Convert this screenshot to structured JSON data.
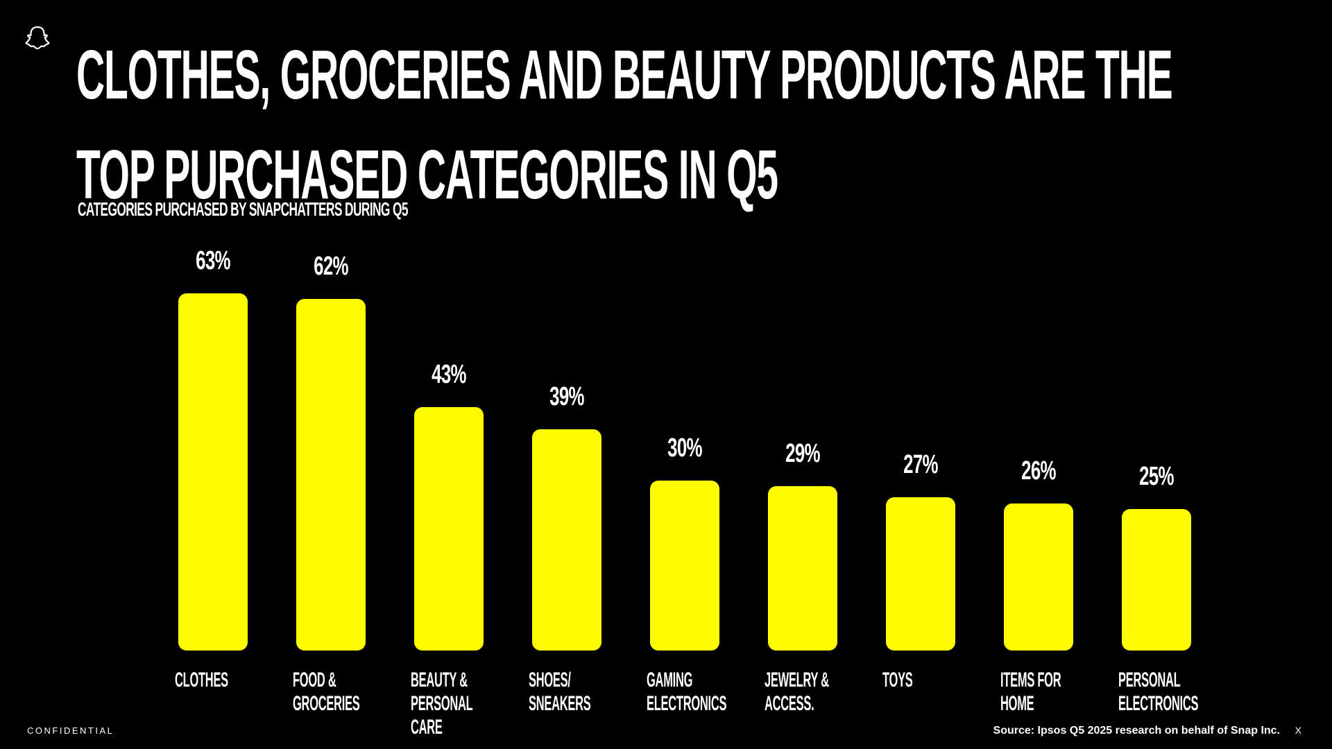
{
  "chart_data": {
    "type": "bar",
    "title": "CLOTHES, GROCERIES AND BEAUTY PRODUCTS ARE THE TOP PURCHASED CATEGORIES IN Q5",
    "subtitle": "CATEGORIES PURCHASED BY SNAPCHATTERS DURING Q5",
    "categories": [
      "CLOTHES",
      "FOOD & GROCERIES",
      "BEAUTY & PERSONAL CARE",
      "SHOES/ SNEAKERS",
      "GAMING ELECTRONICS",
      "JEWELRY & ACCESS.",
      "TOYS",
      "ITEMS FOR HOME",
      "PERSONAL ELECTRONICS"
    ],
    "values": [
      63,
      62,
      43,
      39,
      30,
      29,
      27,
      26,
      25
    ],
    "value_labels": [
      "63%",
      "62%",
      "43%",
      "39%",
      "30%",
      "29%",
      "27%",
      "26%",
      "25%"
    ],
    "color": "#fffc00"
  },
  "footer": {
    "confidential": "CONFIDENTIAL",
    "source": "Source: Ipsos Q5 2025 research on behalf of Snap Inc.",
    "corner_mark": "X"
  }
}
